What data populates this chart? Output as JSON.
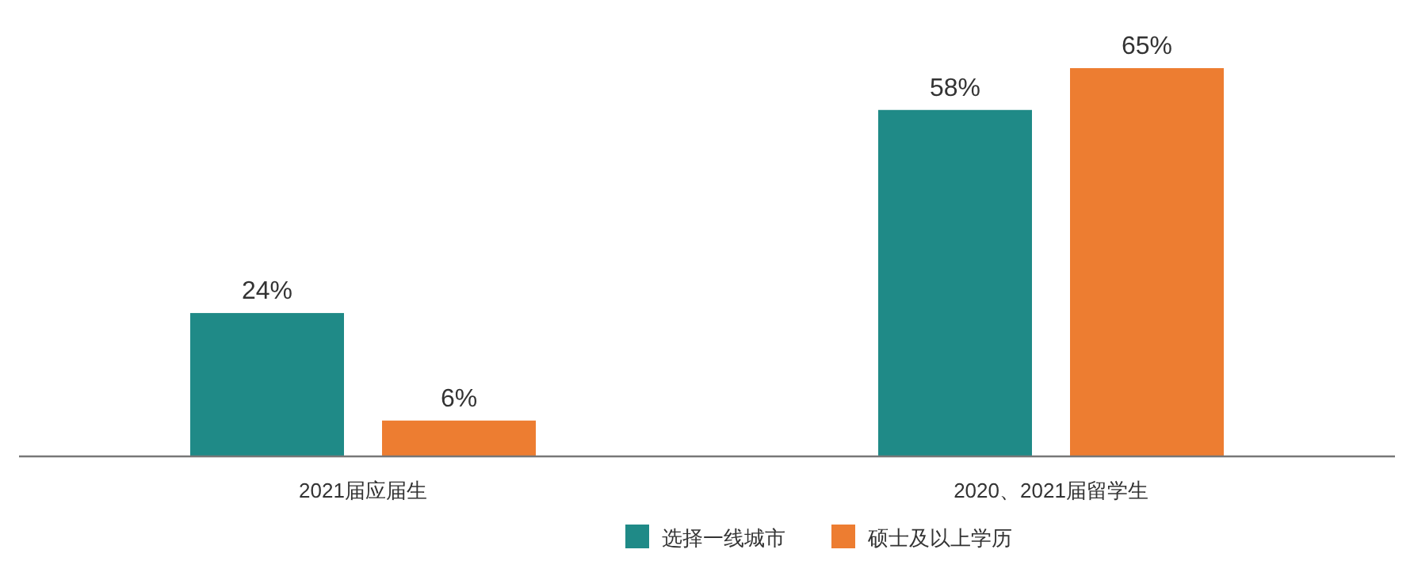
{
  "chart_data": {
    "type": "bar",
    "categories": [
      "2021届应届生",
      "2020、2021届留学生"
    ],
    "series": [
      {
        "name": "选择一线城市",
        "color": "#1f8a87",
        "values": [
          24,
          58
        ],
        "value_labels": [
          "24%",
          "58%"
        ]
      },
      {
        "name": "硕士及以上学历",
        "color": "#ed7d31",
        "values": [
          6,
          65
        ],
        "value_labels": [
          "6%",
          "65%"
        ]
      }
    ],
    "legend": "bottom"
  }
}
